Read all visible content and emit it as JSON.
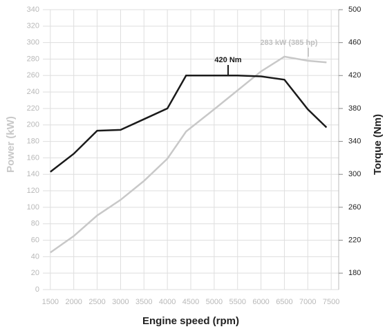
{
  "chart_data": {
    "type": "line",
    "xlabel": "Engine speed (rpm)",
    "ylabel": "Power (kW)",
    "y2label": "Torque (Nm)",
    "x": [
      1500,
      2000,
      2500,
      3000,
      3500,
      4000,
      4400,
      5000,
      5500,
      6000,
      6500,
      7000,
      7400
    ],
    "series": [
      {
        "color": "#c8c8c8",
        "values": [
          45,
          65,
          90,
          109,
          132,
          159,
          192,
          219,
          242,
          265,
          283,
          278,
          276
        ]
      },
      {
        "color": "#1a1a1a",
        "axis": "y2",
        "values": [
          303,
          325,
          353,
          354,
          367,
          380,
          420,
          420,
          420,
          419,
          415,
          379,
          357
        ]
      }
    ],
    "annotations": [
      "420 Nm",
      "283 kW (385 hp)"
    ],
    "xlim": [
      1340,
      7660
    ],
    "xticks": [
      1500,
      2000,
      2500,
      3000,
      3500,
      4000,
      4500,
      5000,
      5500,
      6000,
      6500,
      7000,
      7500
    ],
    "ylim": [
      0,
      340
    ],
    "yticks": [
      0,
      20,
      40,
      60,
      80,
      100,
      120,
      140,
      160,
      180,
      200,
      220,
      240,
      260,
      280,
      300,
      320,
      340
    ],
    "y2lim": [
      160,
      500
    ],
    "y2ticks": [
      180,
      220,
      260,
      300,
      340,
      380,
      420,
      460,
      500
    ],
    "grid": true
  }
}
